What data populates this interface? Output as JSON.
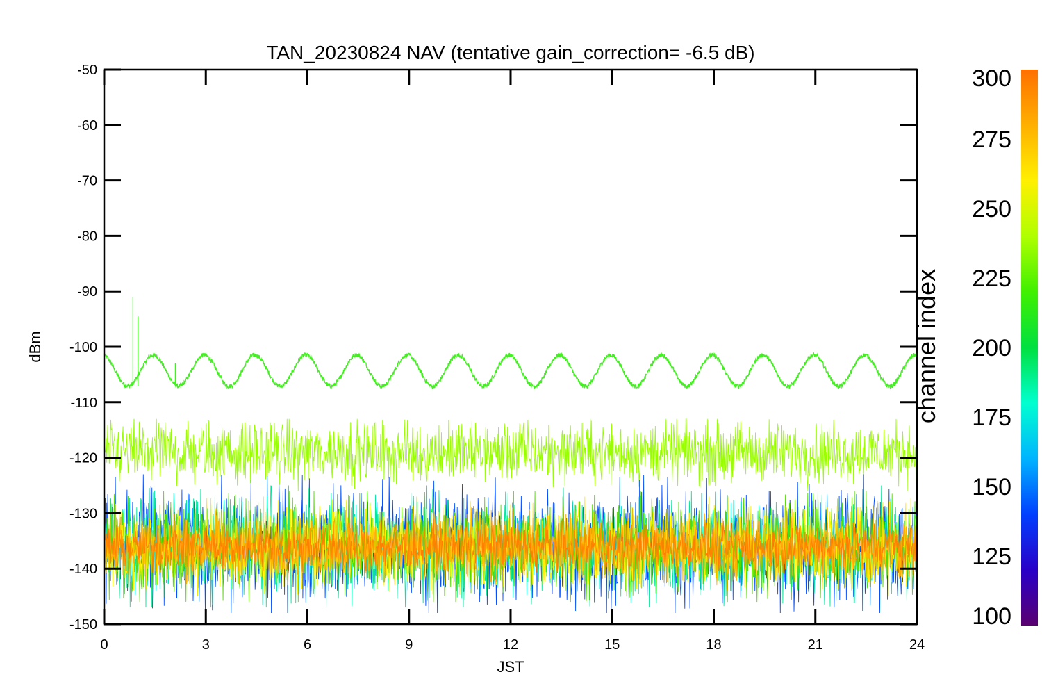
{
  "chart_data": {
    "type": "line",
    "title": "TAN_20230824 NAV (tentative gain_correction= -6.5 dB)",
    "xlabel": "JST",
    "ylabel": "dBm",
    "xlim": [
      0,
      24
    ],
    "ylim": [
      -150,
      -50
    ],
    "xticks": [
      0,
      3,
      6,
      9,
      12,
      15,
      18,
      21,
      24
    ],
    "yticks": [
      -50,
      -60,
      -70,
      -80,
      -90,
      -100,
      -110,
      -120,
      -130,
      -140,
      -150
    ],
    "colorbar": {
      "label": "channel index",
      "range": [
        100,
        300
      ],
      "ticks": [
        300,
        275,
        250,
        225,
        200,
        175,
        150,
        125,
        100
      ],
      "colors": [
        "#5a0070",
        "#2a00c8",
        "#0040ff",
        "#00b4ff",
        "#00ffd0",
        "#00e040",
        "#40f000",
        "#b0ff00",
        "#fff000",
        "#ffb000",
        "#ff7000"
      ]
    },
    "series": [
      {
        "channel": 250,
        "color": "#44ee22",
        "kind": "sinusoid",
        "mean": -104.3,
        "amplitude": 2.8,
        "period_hours": 1.5,
        "noise": 0.4,
        "spikes": [
          [
            0.85,
            -91
          ],
          [
            1.0,
            -94.5
          ],
          [
            2.1,
            -103
          ]
        ]
      },
      {
        "channel": 260,
        "color": "#99ff00",
        "kind": "noise",
        "mean": -119,
        "band": [
          -126,
          -113
        ]
      },
      {
        "channel": 150,
        "color": "#0050ff",
        "kind": "noise",
        "mean": -136,
        "band": [
          -148,
          -123
        ]
      },
      {
        "channel": 200,
        "color": "#00e8a0",
        "kind": "noise",
        "mean": -136,
        "band": [
          -147,
          -125
        ]
      },
      {
        "channel": 240,
        "color": "#55dd00",
        "kind": "noise",
        "mean": -136,
        "band": [
          -146,
          -126
        ]
      },
      {
        "channel": 270,
        "color": "#ffee00",
        "kind": "noise",
        "mean": -136,
        "band": [
          -145,
          -127
        ]
      },
      {
        "channel": 285,
        "color": "#ffb000",
        "kind": "noise",
        "mean": -136,
        "band": [
          -143,
          -129
        ]
      },
      {
        "channel": 300,
        "color": "#ff8000",
        "kind": "noise",
        "mean": -136,
        "band": [
          -141,
          -131
        ]
      }
    ]
  }
}
